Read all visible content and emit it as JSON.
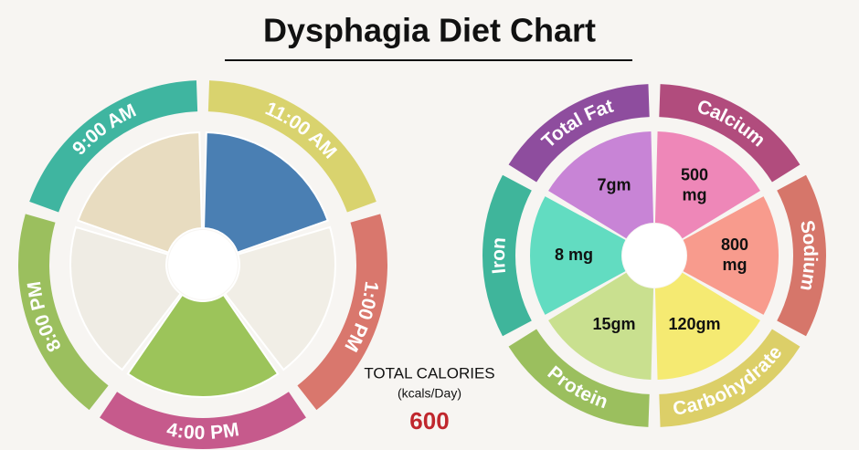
{
  "title": "Dysphagia Diet Chart",
  "meal_times": [
    {
      "label": "9:00 AM",
      "color": "#3fb5a0",
      "photo": "#e8dcc0"
    },
    {
      "label": "11:00 AM",
      "color": "#d9d36e",
      "photo": "#4a7fb3"
    },
    {
      "label": "1:00 PM",
      "color": "#d9776d",
      "photo": "#f1eee6"
    },
    {
      "label": "4:00 PM",
      "color": "#c65a8c",
      "photo": "#9cc45a"
    },
    {
      "label": "8:00 PM",
      "color": "#9bbf5e",
      "photo": "#efece4"
    }
  ],
  "calories": {
    "label": "TOTAL CALORIES",
    "unit": "(kcals/Day)",
    "value": "600"
  },
  "nutrients": [
    {
      "label": "Total Fat",
      "value_lines": [
        "7gm"
      ],
      "color": "#8e4d9e",
      "fill": "#c884d6"
    },
    {
      "label": "Calcium",
      "value_lines": [
        "500",
        "mg"
      ],
      "color": "#b14c7d",
      "fill": "#ee87b8"
    },
    {
      "label": "Sodium",
      "value_lines": [
        "800",
        "mg"
      ],
      "color": "#d6766a",
      "fill": "#f89b8d"
    },
    {
      "label": "Carbohydrate",
      "value_lines": [
        "120gm"
      ],
      "color": "#dccf68",
      "fill": "#f5ea72"
    },
    {
      "label": "Protein",
      "value_lines": [
        "15gm"
      ],
      "color": "#9bbf5e",
      "fill": "#c9e08f"
    },
    {
      "label": "Iron",
      "value_lines": [
        "8 mg"
      ],
      "color": "#3fb59b",
      "fill": "#62dcc1"
    }
  ]
}
